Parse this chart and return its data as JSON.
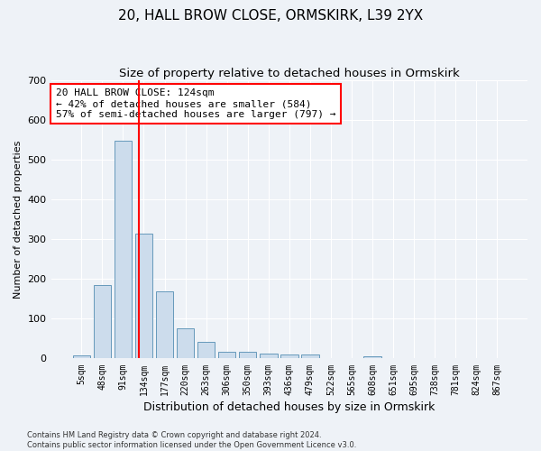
{
  "title1": "20, HALL BROW CLOSE, ORMSKIRK, L39 2YX",
  "title2": "Size of property relative to detached houses in Ormskirk",
  "xlabel": "Distribution of detached houses by size in Ormskirk",
  "ylabel": "Number of detached properties",
  "footer1": "Contains HM Land Registry data © Crown copyright and database right 2024.",
  "footer2": "Contains public sector information licensed under the Open Government Licence v3.0.",
  "bar_labels": [
    "5sqm",
    "48sqm",
    "91sqm",
    "134sqm",
    "177sqm",
    "220sqm",
    "263sqm",
    "306sqm",
    "350sqm",
    "393sqm",
    "436sqm",
    "479sqm",
    "522sqm",
    "565sqm",
    "608sqm",
    "651sqm",
    "695sqm",
    "738sqm",
    "781sqm",
    "824sqm",
    "867sqm"
  ],
  "bar_values": [
    7,
    185,
    548,
    315,
    168,
    75,
    42,
    18,
    18,
    12,
    10,
    10,
    0,
    0,
    5,
    0,
    0,
    0,
    0,
    0,
    0
  ],
  "bar_color": "#ccdcec",
  "bar_edgecolor": "#6699bb",
  "vline_color": "red",
  "annotation_text": "20 HALL BROW CLOSE: 124sqm\n← 42% of detached houses are smaller (584)\n57% of semi-detached houses are larger (797) →",
  "annotation_box_color": "white",
  "annotation_box_edgecolor": "red",
  "ylim": [
    0,
    700
  ],
  "yticks": [
    0,
    100,
    200,
    300,
    400,
    500,
    600,
    700
  ],
  "bg_color": "#eef2f7",
  "plot_bg_color": "#eef2f7",
  "title1_fontsize": 11,
  "title2_fontsize": 9.5,
  "xlabel_fontsize": 9,
  "ylabel_fontsize": 8,
  "annotation_fontsize": 8,
  "tick_fontsize": 7,
  "ytick_fontsize": 8,
  "footer_fontsize": 6
}
